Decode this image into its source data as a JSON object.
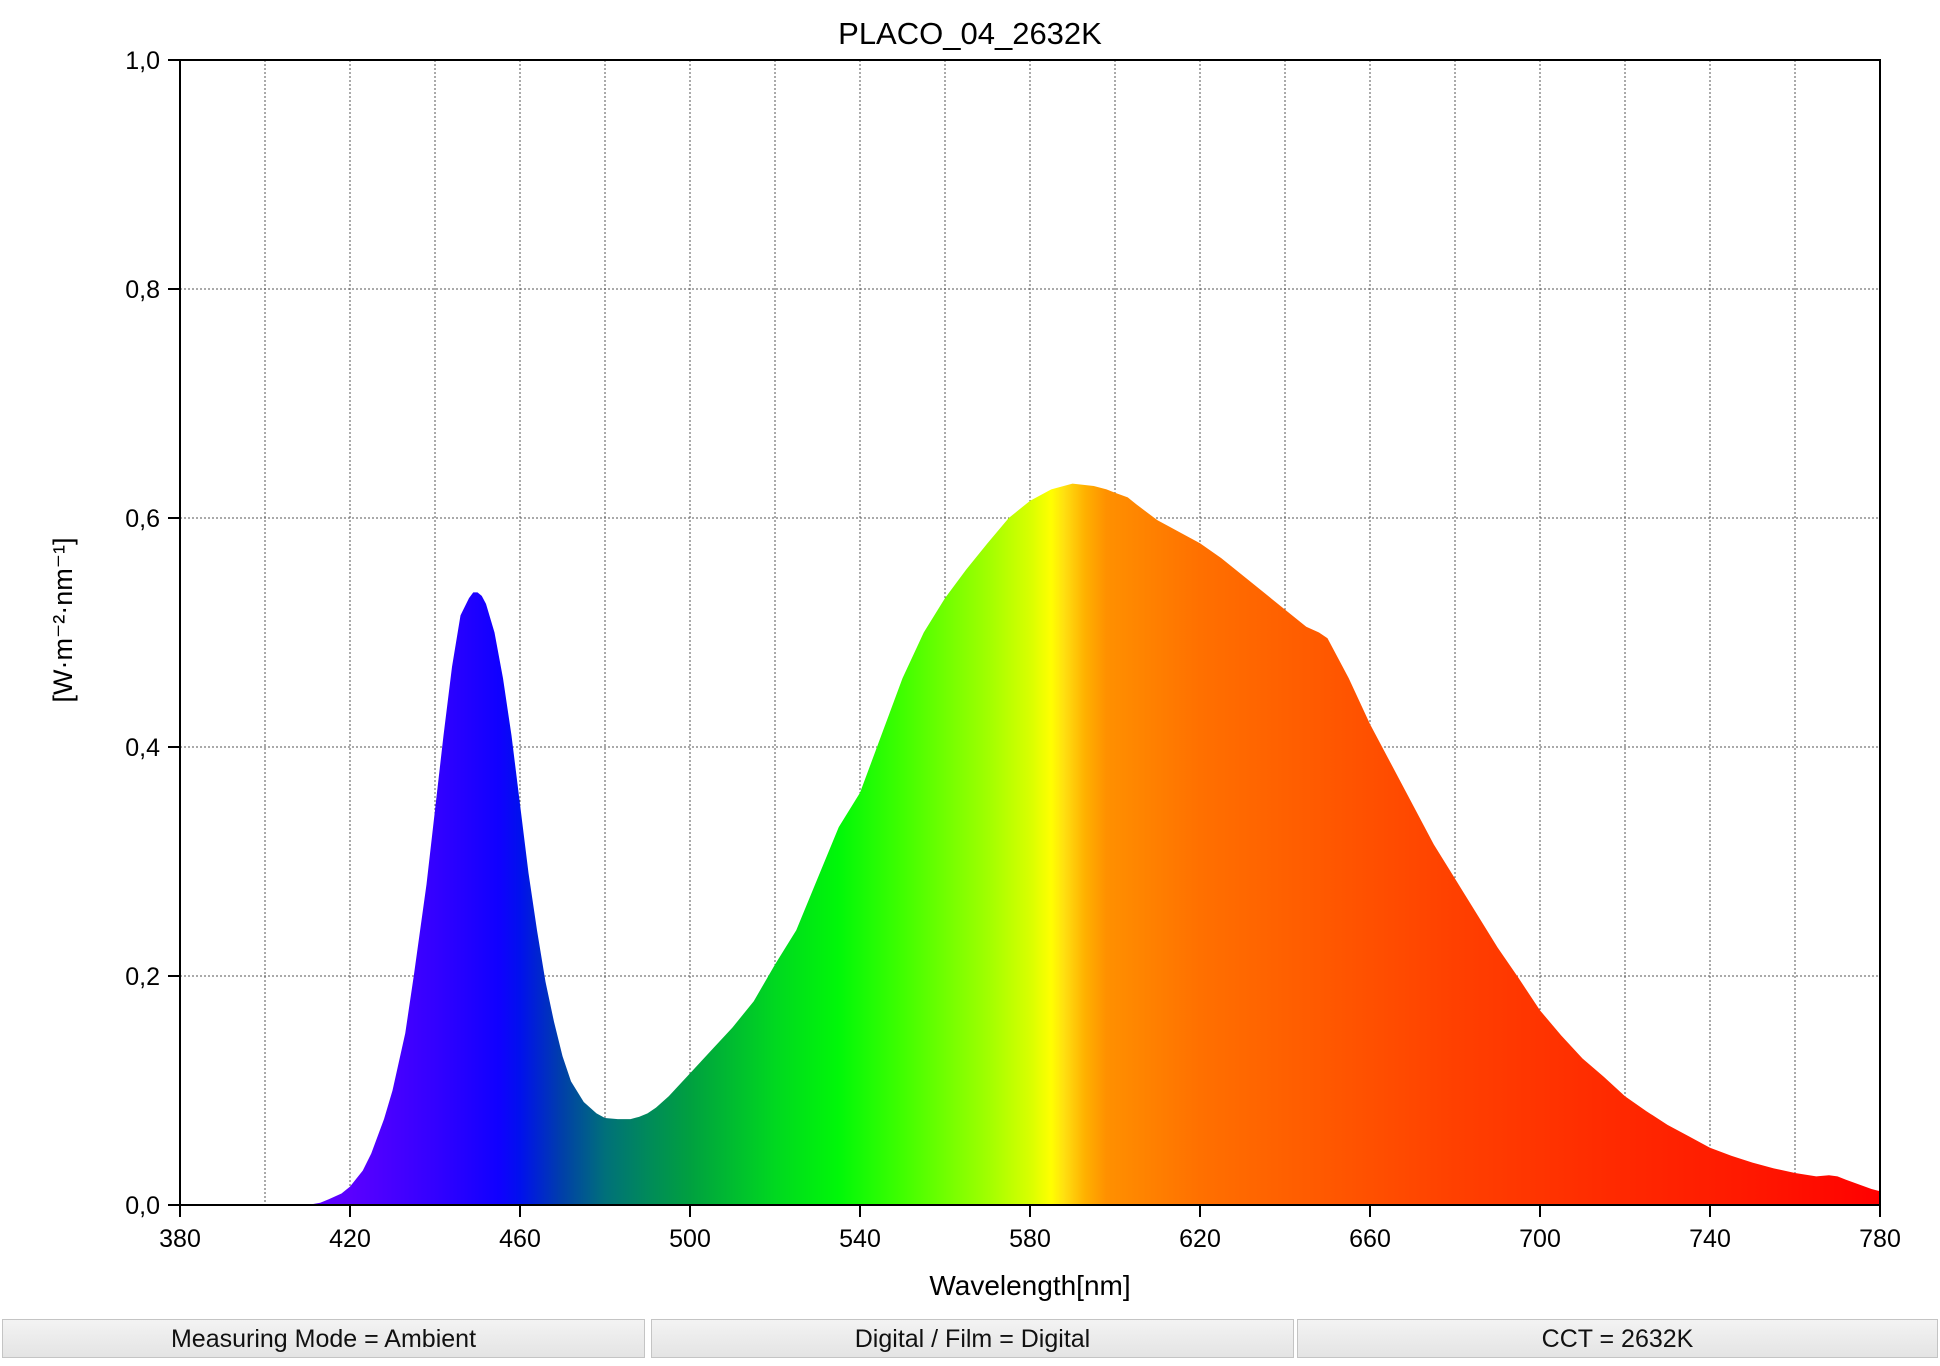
{
  "chart_data": {
    "type": "area",
    "title": "PLACO_04_2632K",
    "xlabel": "Wavelength[nm]",
    "ylabel": "[W·m⁻²·nm⁻¹]",
    "xlim": [
      380,
      780
    ],
    "ylim": [
      0.0,
      1.0
    ],
    "x_ticks": [
      "380",
      "420",
      "460",
      "500",
      "540",
      "580",
      "620",
      "660",
      "700",
      "740",
      "780"
    ],
    "y_ticks": [
      "0,0",
      "0,2",
      "0,4",
      "0,6",
      "0,8",
      "1,0"
    ],
    "grid": true,
    "fill": "visible-spectrum color gradient",
    "series": [
      {
        "x": [
          380,
          400,
          410,
          413,
          415,
          418,
          420,
          423,
          425,
          428,
          430,
          433,
          435,
          438,
          440,
          442,
          444,
          446,
          448,
          449,
          450,
          451,
          452,
          454,
          456,
          458,
          460,
          462,
          464,
          466,
          468,
          470,
          472,
          475,
          478,
          480,
          483,
          486,
          488,
          490,
          492,
          495,
          498,
          500,
          505,
          510,
          515,
          520,
          525,
          530,
          535,
          540,
          545,
          550,
          555,
          560,
          565,
          570,
          575,
          580,
          585,
          590,
          595,
          598,
          600,
          603,
          605,
          610,
          613,
          615,
          620,
          625,
          630,
          635,
          640,
          645,
          648,
          650,
          655,
          660,
          665,
          670,
          675,
          680,
          685,
          690,
          695,
          700,
          705,
          710,
          715,
          720,
          725,
          730,
          735,
          740,
          745,
          750,
          755,
          760,
          765,
          768,
          770,
          772,
          775,
          778,
          780
        ],
        "y": [
          0.0,
          0.0,
          0.0,
          0.002,
          0.005,
          0.01,
          0.016,
          0.03,
          0.045,
          0.075,
          0.1,
          0.15,
          0.2,
          0.28,
          0.345,
          0.41,
          0.47,
          0.515,
          0.53,
          0.535,
          0.535,
          0.532,
          0.525,
          0.5,
          0.46,
          0.41,
          0.35,
          0.29,
          0.24,
          0.195,
          0.16,
          0.13,
          0.108,
          0.09,
          0.08,
          0.076,
          0.075,
          0.075,
          0.077,
          0.08,
          0.085,
          0.095,
          0.107,
          0.115,
          0.135,
          0.155,
          0.178,
          0.21,
          0.24,
          0.285,
          0.33,
          0.36,
          0.41,
          0.46,
          0.5,
          0.53,
          0.555,
          0.578,
          0.6,
          0.615,
          0.625,
          0.63,
          0.628,
          0.625,
          0.622,
          0.618,
          0.612,
          0.598,
          0.592,
          0.588,
          0.578,
          0.565,
          0.55,
          0.535,
          0.52,
          0.505,
          0.5,
          0.495,
          0.46,
          0.42,
          0.385,
          0.35,
          0.315,
          0.285,
          0.255,
          0.225,
          0.198,
          0.17,
          0.148,
          0.128,
          0.112,
          0.095,
          0.082,
          0.07,
          0.06,
          0.05,
          0.043,
          0.037,
          0.032,
          0.028,
          0.025,
          0.026,
          0.025,
          0.022,
          0.018,
          0.014,
          0.012
        ]
      }
    ]
  },
  "status_bar": [
    {
      "label": "Measuring Mode = Ambient"
    },
    {
      "label": "Digital / Film = Digital"
    },
    {
      "label": "CCT = 2632K"
    }
  ]
}
